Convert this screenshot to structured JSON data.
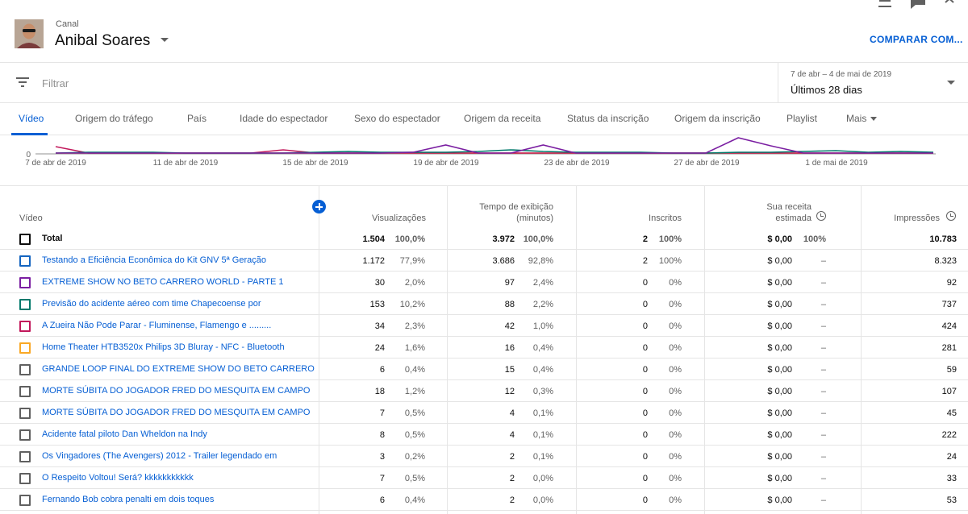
{
  "header": {
    "canal_label": "Canal",
    "channel_name": "Anibal Soares",
    "compare_label": "COMPARAR COM..."
  },
  "filter": {
    "placeholder": "Filtrar"
  },
  "date": {
    "range": "7 de abr – 4 de mai de 2019",
    "period": "Últimos 28 dias"
  },
  "tabs": [
    {
      "label": "Vídeo"
    },
    {
      "label": "Origem do tráfego"
    },
    {
      "label": "País"
    },
    {
      "label": "Idade do espectador"
    },
    {
      "label": "Sexo do espectador"
    },
    {
      "label": "Origem da receita"
    },
    {
      "label": "Status da inscrição"
    },
    {
      "label": "Origem da inscrição"
    },
    {
      "label": "Playlist"
    },
    {
      "label": "Mais"
    }
  ],
  "chart": {
    "y_tick": "0",
    "x_ticks": [
      "7 de abr de 2019",
      "11 de abr de 2019",
      "15 de abr de 2019",
      "19 de abr de 2019",
      "23 de abr de 2019",
      "27 de abr de 2019",
      "1 de mai de 2019"
    ]
  },
  "chart_data": {
    "type": "line",
    "x": [
      "7 abr",
      "8 abr",
      "9 abr",
      "10 abr",
      "11 abr",
      "12 abr",
      "13 abr",
      "14 abr",
      "15 abr",
      "16 abr",
      "17 abr",
      "18 abr",
      "19 abr",
      "20 abr",
      "21 abr",
      "22 abr",
      "23 abr",
      "24 abr",
      "25 abr",
      "26 abr",
      "27 abr",
      "28 abr",
      "29 abr",
      "30 abr",
      "1 mai",
      "2 mai",
      "3 mai",
      "4 mai"
    ],
    "ylim": [
      0,
      20
    ],
    "series": [
      {
        "color": "#7b1fa2",
        "values": [
          1,
          1,
          1,
          1,
          1,
          1,
          1,
          1,
          1,
          1,
          1,
          2,
          11,
          1,
          1,
          11,
          1,
          1,
          1,
          1,
          1,
          20,
          10,
          1,
          1,
          1,
          1,
          1
        ]
      },
      {
        "color": "#00796b",
        "values": [
          1,
          2,
          2,
          2,
          1,
          1,
          1,
          1,
          2,
          3,
          2,
          2,
          2,
          3,
          5,
          3,
          2,
          2,
          2,
          1,
          1,
          2,
          2,
          3,
          4,
          2,
          3,
          2
        ]
      },
      {
        "color": "#c2185b",
        "values": [
          9,
          1,
          1,
          1,
          1,
          1,
          1,
          5,
          1,
          1,
          1,
          1,
          1,
          1,
          1,
          1,
          1,
          1,
          1,
          1,
          1,
          1,
          1,
          1,
          1,
          1,
          1,
          1
        ]
      },
      {
        "color": "#f9a825",
        "values": [
          1,
          1,
          1,
          1,
          1,
          1,
          1,
          1,
          1,
          1,
          1,
          1,
          1,
          1,
          1,
          1,
          1,
          1,
          1,
          1,
          1,
          1,
          1,
          1,
          1,
          1,
          1,
          1
        ]
      }
    ]
  },
  "table": {
    "headers": {
      "video": "Vídeo",
      "views": "Visualizações",
      "watch_1": "Tempo de exibição",
      "watch_2": "(minutos)",
      "subs": "Inscritos",
      "rev_1": "Sua receita",
      "rev_2": "estimada",
      "impr": "Impressões"
    },
    "rows": [
      {
        "title": "Total",
        "color": "#0d0d0d",
        "views": "1.504",
        "views_pct": "100,0%",
        "watch": "3.972",
        "watch_pct": "100,0%",
        "subs": "2",
        "subs_pct": "100%",
        "rev": "$ 0,00",
        "rev_pct": "100%",
        "impr": "10.783"
      },
      {
        "title": "Testando a Eficiência Econômica do Kit GNV 5ª Geração",
        "color": "#1565c0",
        "views": "1.172",
        "views_pct": "77,9%",
        "watch": "3.686",
        "watch_pct": "92,8%",
        "subs": "2",
        "subs_pct": "100%",
        "rev": "$ 0,00",
        "rev_pct": "–",
        "impr": "8.323"
      },
      {
        "title": "EXTREME SHOW NO BETO CARRERO WORLD - PARTE 1",
        "color": "#7b1fa2",
        "views": "30",
        "views_pct": "2,0%",
        "watch": "97",
        "watch_pct": "2,4%",
        "subs": "0",
        "subs_pct": "0%",
        "rev": "$ 0,00",
        "rev_pct": "–",
        "impr": "92"
      },
      {
        "title": "Previsão do acidente aéreo com time Chapecoense por",
        "color": "#00796b",
        "views": "153",
        "views_pct": "10,2%",
        "watch": "88",
        "watch_pct": "2,2%",
        "subs": "0",
        "subs_pct": "0%",
        "rev": "$ 0,00",
        "rev_pct": "–",
        "impr": "737"
      },
      {
        "title": "A Zueira Não Pode Parar - Fluminense, Flamengo e .........",
        "color": "#c2185b",
        "views": "34",
        "views_pct": "2,3%",
        "watch": "42",
        "watch_pct": "1,0%",
        "subs": "0",
        "subs_pct": "0%",
        "rev": "$ 0,00",
        "rev_pct": "–",
        "impr": "424"
      },
      {
        "title": "Home Theater HTB3520x Philips 3D Bluray - NFC - Bluetooth",
        "color": "#f9a825",
        "views": "24",
        "views_pct": "1,6%",
        "watch": "16",
        "watch_pct": "0,4%",
        "subs": "0",
        "subs_pct": "0%",
        "rev": "$ 0,00",
        "rev_pct": "–",
        "impr": "281"
      },
      {
        "title": "GRANDE LOOP FINAL DO EXTREME SHOW DO BETO CARRERO",
        "color": "#606060",
        "views": "6",
        "views_pct": "0,4%",
        "watch": "15",
        "watch_pct": "0,4%",
        "subs": "0",
        "subs_pct": "0%",
        "rev": "$ 0,00",
        "rev_pct": "–",
        "impr": "59"
      },
      {
        "title": "MORTE SÚBITA DO JOGADOR FRED DO MESQUITA EM CAMPO",
        "color": "#606060",
        "views": "18",
        "views_pct": "1,2%",
        "watch": "12",
        "watch_pct": "0,3%",
        "subs": "0",
        "subs_pct": "0%",
        "rev": "$ 0,00",
        "rev_pct": "–",
        "impr": "107"
      },
      {
        "title": "MORTE SÚBITA DO JOGADOR FRED DO MESQUITA EM CAMPO",
        "color": "#606060",
        "views": "7",
        "views_pct": "0,5%",
        "watch": "4",
        "watch_pct": "0,1%",
        "subs": "0",
        "subs_pct": "0%",
        "rev": "$ 0,00",
        "rev_pct": "–",
        "impr": "45"
      },
      {
        "title": "Acidente fatal piloto Dan Wheldon na Indy",
        "color": "#606060",
        "views": "8",
        "views_pct": "0,5%",
        "watch": "4",
        "watch_pct": "0,1%",
        "subs": "0",
        "subs_pct": "0%",
        "rev": "$ 0,00",
        "rev_pct": "–",
        "impr": "222"
      },
      {
        "title": "Os Vingadores (The Avengers) 2012 - Trailer legendado em",
        "color": "#606060",
        "views": "3",
        "views_pct": "0,2%",
        "watch": "2",
        "watch_pct": "0,1%",
        "subs": "0",
        "subs_pct": "0%",
        "rev": "$ 0,00",
        "rev_pct": "–",
        "impr": "24"
      },
      {
        "title": "O Respeito Voltou! Será? kkkkkkkkkkk",
        "color": "#606060",
        "views": "7",
        "views_pct": "0,5%",
        "watch": "2",
        "watch_pct": "0,0%",
        "subs": "0",
        "subs_pct": "0%",
        "rev": "$ 0,00",
        "rev_pct": "–",
        "impr": "33"
      },
      {
        "title": "Fernando Bob cobra penalti em dois toques",
        "color": "#606060",
        "views": "6",
        "views_pct": "0,4%",
        "watch": "2",
        "watch_pct": "0,0%",
        "subs": "0",
        "subs_pct": "0%",
        "rev": "$ 0,00",
        "rev_pct": "–",
        "impr": "53"
      }
    ]
  }
}
